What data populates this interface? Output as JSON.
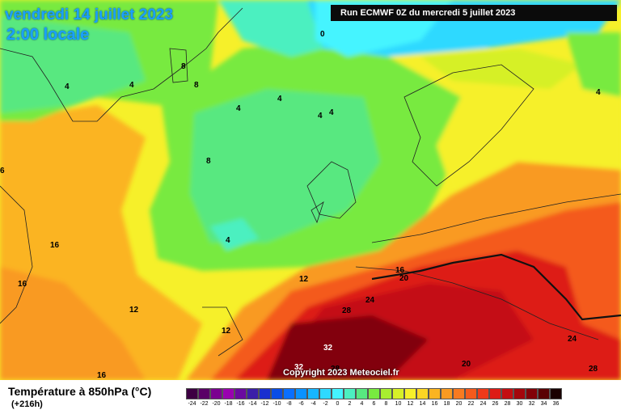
{
  "map": {
    "date_title": "vendredi 14 juillet 2023",
    "time_title": "2:00 locale",
    "run_info": "Run ECMWF 0Z du mercredi 5 juillet 2023",
    "copyright": "Copyright 2023 Meteociel.fr"
  },
  "isotherm_labels": [
    "0",
    "4",
    "8",
    "8",
    "8",
    "4",
    "4",
    "4",
    "4",
    "4",
    "4",
    "16",
    "16",
    "12",
    "12",
    "12",
    "16",
    "20",
    "24",
    "28",
    "32",
    "32",
    "28",
    "20",
    "24",
    "28",
    "4",
    "6",
    "16"
  ],
  "legend": {
    "title": "Température à 850hPa (°C)",
    "subtitle": "(+216h)",
    "scale_labels": [
      "-24",
      "-22",
      "-20",
      "-18",
      "-16",
      "-14",
      "-12",
      "-10",
      "-8",
      "-6",
      "-4",
      "-2",
      "0",
      "2",
      "4",
      "6",
      "8",
      "10",
      "12",
      "14",
      "16",
      "18",
      "20",
      "22",
      "24",
      "26",
      "28",
      "30",
      "32",
      "34",
      "36"
    ],
    "scale_colors": [
      "#3d0042",
      "#5a0066",
      "#7b0090",
      "#9a00b0",
      "#6a0aa0",
      "#3b1fa8",
      "#1a2fcf",
      "#0a4de6",
      "#0a6fff",
      "#0a92ff",
      "#17b6ff",
      "#2fd9ff",
      "#44f4ff",
      "#4cf0c0",
      "#58e880",
      "#78ea40",
      "#a8ee30",
      "#d6f028",
      "#f6f02a",
      "#fbd624",
      "#fbb420",
      "#f99a22",
      "#f77a20",
      "#f45a1c",
      "#ee3a1a",
      "#dd1c16",
      "#c40e12",
      "#a4060c",
      "#820208",
      "#5a0004",
      "#1a0000"
    ]
  }
}
